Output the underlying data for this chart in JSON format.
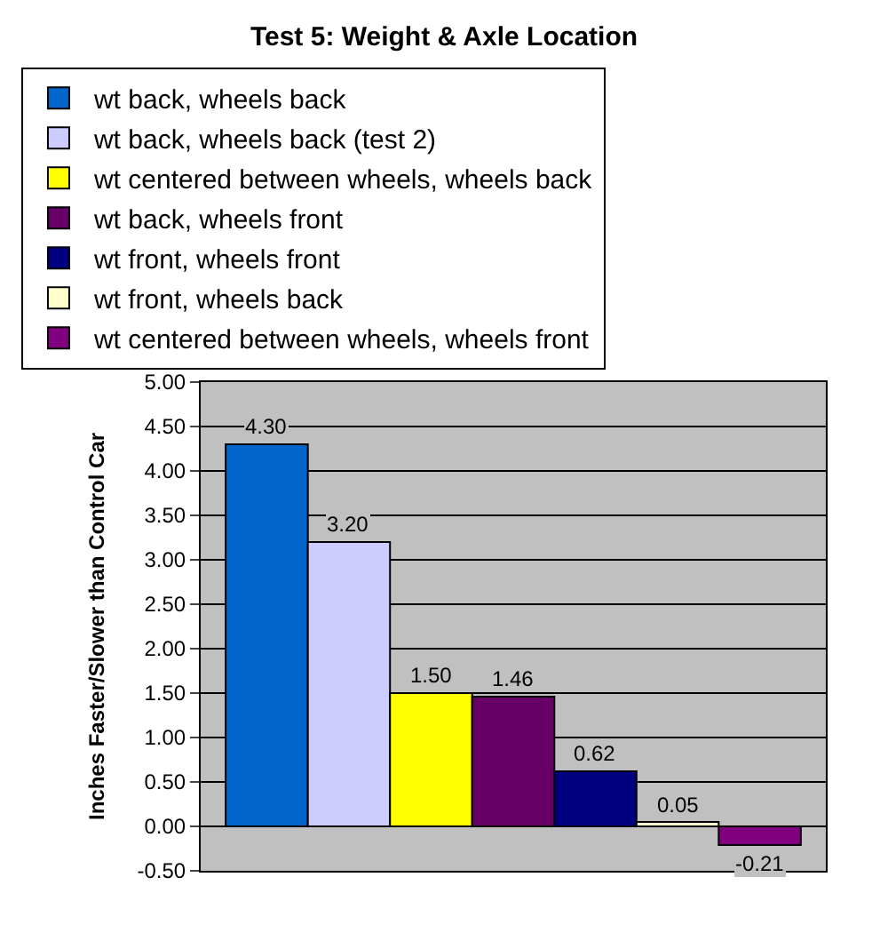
{
  "chart_data": {
    "type": "bar",
    "title": "Test 5: Weight & Axle Location",
    "ylabel": "Inches Faster/Slower than Control Car",
    "categories": [
      null
    ],
    "series": [
      {
        "name": "wt back, wheels back",
        "color": "#0066cc",
        "values": [
          4.3
        ],
        "value_labels": [
          "4.30"
        ]
      },
      {
        "name": "wt back, wheels back (test 2)",
        "color": "#ccccff",
        "values": [
          3.2
        ],
        "value_labels": [
          "3.20"
        ]
      },
      {
        "name": "wt centered between wheels, wheels back",
        "color": "#ffff00",
        "values": [
          1.5
        ],
        "value_labels": [
          "1.50"
        ]
      },
      {
        "name": "wt back, wheels front",
        "color": "#660066",
        "values": [
          1.46
        ],
        "value_labels": [
          "1.46"
        ]
      },
      {
        "name": "wt front, wheels front",
        "color": "#000080",
        "values": [
          0.62
        ],
        "value_labels": [
          "0.62"
        ]
      },
      {
        "name": "wt front, wheels back",
        "color": "#ffffcc",
        "values": [
          0.05
        ],
        "value_labels": [
          "0.05"
        ]
      },
      {
        "name": "wt centered between wheels, wheels front",
        "color": "#800080",
        "values": [
          -0.21
        ],
        "value_labels": [
          "-0.21"
        ]
      }
    ],
    "ylim": [
      -0.5,
      5.0
    ],
    "yticks": [
      {
        "value": -0.5,
        "label": "-0.50"
      },
      {
        "value": 0,
        "label": "0.00"
      },
      {
        "value": 0.5,
        "label": "0.50"
      },
      {
        "value": 1,
        "label": "1.00"
      },
      {
        "value": 1.5,
        "label": "1.50"
      },
      {
        "value": 2,
        "label": "2.00"
      },
      {
        "value": 2.5,
        "label": "2.50"
      },
      {
        "value": 3,
        "label": "3.00"
      },
      {
        "value": 3.5,
        "label": "3.50"
      },
      {
        "value": 4,
        "label": "4.00"
      },
      {
        "value": 4.5,
        "label": "4.50"
      },
      {
        "value": 5,
        "label": "5.00"
      }
    ],
    "grid": "y",
    "legend": "top"
  }
}
